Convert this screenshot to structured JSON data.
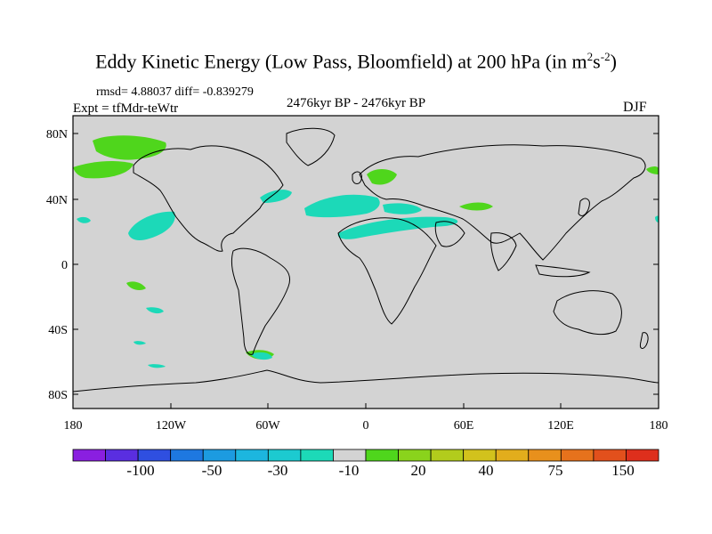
{
  "title": {
    "main": "Eddy Kinetic Energy (Low Pass, Bloomfield) at 200 hPa (in m",
    "sup1": "2",
    "mid": "s",
    "sup2": "-2",
    "close": ")"
  },
  "stats": "rmsd= 4.88037 diff= -0.839279",
  "expt": "Expt = tfMdr-teWtr",
  "period": "2476kyr BP - 2476kyr BP",
  "season": "DJF",
  "lat_ticks": [
    "80N",
    "40N",
    "0",
    "40S",
    "80S"
  ],
  "lon_ticks": [
    "180",
    "120W",
    "60W",
    "0",
    "60E",
    "120E",
    "180"
  ],
  "colorbar": {
    "colors": [
      "#8a1fe0",
      "#5a2ee0",
      "#2f4fe0",
      "#1e78e0",
      "#1c9be0",
      "#1cb6df",
      "#1ccad0",
      "#1cd9b8",
      "#d3d3d3",
      "#4fd61c",
      "#8ad31c",
      "#b2cc1c",
      "#d2c21c",
      "#e2ad1c",
      "#e8901c",
      "#e6721c",
      "#e2501c",
      "#de2f1c"
    ],
    "labels": [
      "-100",
      "-50",
      "-30",
      "-10",
      "20",
      "40",
      "75",
      "150"
    ]
  },
  "fill_colors": {
    "ocean_land": "#d3d3d3",
    "negative": "#1cd9b8",
    "positive": "#4fd61c"
  }
}
